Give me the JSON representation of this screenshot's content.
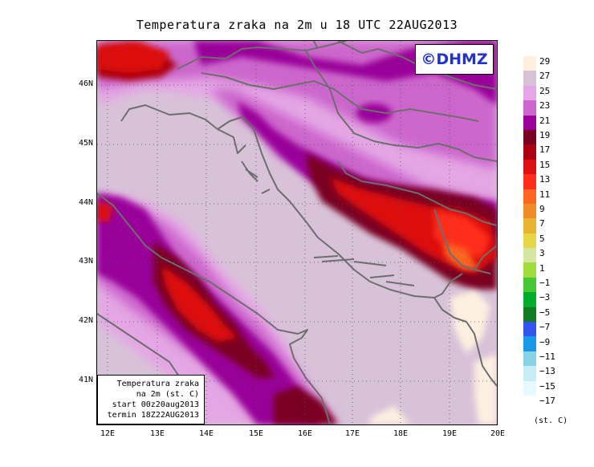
{
  "title": "Temperatura zraka na 2m u 18 UTC 22AUG2013",
  "logo": "©DHMZ",
  "info_box": {
    "line1": "Temperatura zraka",
    "line2": "na 2m (st. C)",
    "line3": "start 00z20aug2013",
    "line4": "termin 18Z22AUG2013"
  },
  "lat_ticks": [
    "46N",
    "45N",
    "44N",
    "43N",
    "42N",
    "41N"
  ],
  "lon_ticks": [
    "12E",
    "13E",
    "14E",
    "15E",
    "16E",
    "17E",
    "18E",
    "19E",
    "20E"
  ],
  "legend": {
    "labels": [
      "29",
      "27",
      "25",
      "23",
      "21",
      "19",
      "17",
      "15",
      "13",
      "11",
      "9",
      "7",
      "5",
      "3",
      "1",
      "−1",
      "−3",
      "−5",
      "−7",
      "−9",
      "−11",
      "−13",
      "−15",
      "−17"
    ],
    "colors": [
      "#fdf0e0",
      "#d8c2d8",
      "#e4a6e4",
      "#cc66cc",
      "#990099",
      "#7a0022",
      "#aa0011",
      "#dd1111",
      "#ff2e1a",
      "#ff6622",
      "#f08c28",
      "#e6b432",
      "#e6d648",
      "#d4e6a0",
      "#a0dc3c",
      "#46c832",
      "#00aa2a",
      "#117a22",
      "#3355ee",
      "#1899e6",
      "#88d4e6",
      "#c6eef4",
      "#e8fafd"
    ],
    "units": "(st. C)"
  }
}
